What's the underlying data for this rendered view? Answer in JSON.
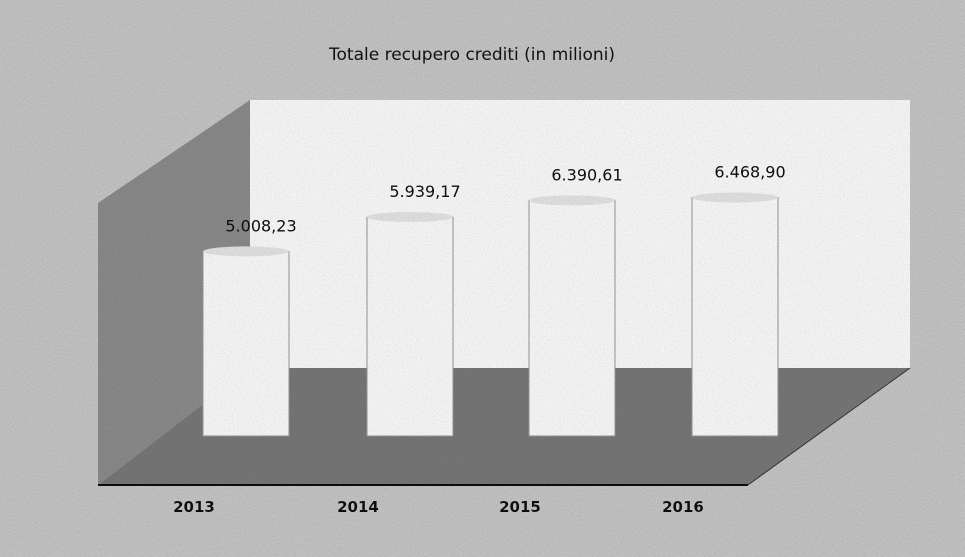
{
  "chart_data": {
    "type": "bar",
    "title": "Totale recupero crediti (in milioni)",
    "categories": [
      "2013",
      "2014",
      "2015",
      "2016"
    ],
    "values": [
      5008.23,
      5939.17,
      6390.61,
      6468.9
    ],
    "value_labels": [
      "5.008,23",
      "5.939,17",
      "6.390,61",
      "6.468,90"
    ],
    "ylim": [
      0,
      8000
    ],
    "grid": false,
    "legend": "none",
    "style": "3d-column",
    "colors": {
      "bar": "#ffffff",
      "back_wall": "#ffffff",
      "side_wall": "#8e8e8e",
      "floor": "#7a7a7a",
      "background": "#bdbdbd",
      "text": "#111111"
    }
  }
}
